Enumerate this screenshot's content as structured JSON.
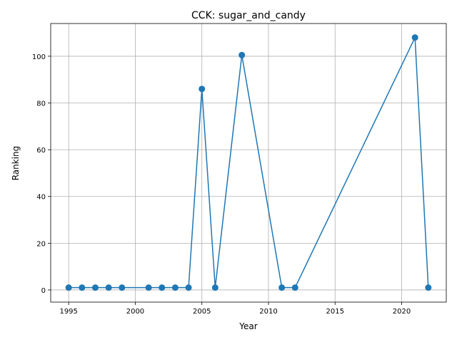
{
  "chart_data": {
    "type": "line",
    "title": "CCK: sugar_and_candy",
    "x_label": "Year",
    "y_label": "Ranking",
    "x": [
      1995,
      1996,
      1997,
      1998,
      1999,
      2001,
      2002,
      2003,
      2004,
      2005,
      2006,
      2008,
      2011,
      2012,
      2021,
      2022
    ],
    "series": [
      {
        "name": "Ranking",
        "color": "#1f77b4",
        "values": [
          1,
          1,
          1,
          1,
          1,
          1,
          1,
          1,
          1,
          86,
          1,
          100.5,
          1,
          1,
          108,
          1
        ]
      }
    ],
    "xlim": [
      1993.65,
      2023.35
    ],
    "ylim": [
      -5.2,
      114
    ],
    "xticks": [
      1995,
      2000,
      2005,
      2010,
      2015,
      2020
    ],
    "yticks": [
      0,
      20,
      40,
      60,
      80,
      100
    ],
    "grid": true
  }
}
